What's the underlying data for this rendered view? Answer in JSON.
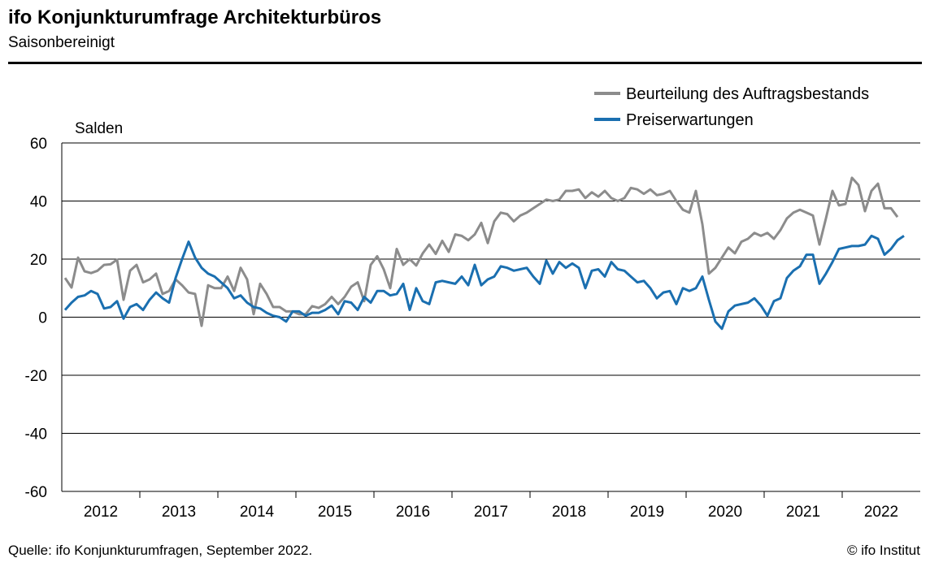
{
  "header": {
    "title": "ifo Konjunkturumfrage Architekturbüros",
    "subtitle": "Saisonbereinigt"
  },
  "footer": {
    "source": "Quelle: ifo Konjunkturumfragen, September 2022.",
    "copyright": "© ifo Institut"
  },
  "chart_data": {
    "type": "line",
    "ylabel": "Salden",
    "ylim": [
      -60,
      60
    ],
    "yticks": [
      60,
      40,
      20,
      0,
      -20,
      -40,
      -60
    ],
    "xlim": [
      "2012-01",
      "2022-12"
    ],
    "year_labels": [
      "2012",
      "2013",
      "2014",
      "2015",
      "2016",
      "2017",
      "2018",
      "2019",
      "2020",
      "2021",
      "2022"
    ],
    "grid": "horizontal",
    "legend_position": "top-right",
    "series": [
      {
        "name": "Beurteilung des Auftragsbestands",
        "color": "#8c8c8c",
        "start": "2012-01",
        "values": [
          13.5,
          10.2,
          20.5,
          15.8,
          15.2,
          16.0,
          18.0,
          18.2,
          19.8,
          6.0,
          16.0,
          18.0,
          12.0,
          13.0,
          15.0,
          8.0,
          9.0,
          13.0,
          11.0,
          8.5,
          8.0,
          -3.0,
          11.0,
          10.0,
          10.0,
          14.0,
          9.0,
          17.0,
          13.0,
          1.0,
          11.5,
          8.0,
          3.5,
          3.5,
          2.0,
          2.0,
          1.0,
          1.0,
          3.8,
          3.2,
          4.5,
          7.0,
          4.5,
          7.0,
          10.5,
          12.0,
          5.5,
          18.0,
          21.0,
          16.5,
          10.0,
          23.5,
          18.0,
          20.0,
          17.8,
          22.0,
          25.0,
          21.8,
          26.3,
          22.5,
          28.5,
          28.0,
          26.5,
          28.5,
          32.5,
          25.5,
          33.0,
          36.0,
          35.5,
          33.0,
          35.0,
          36.0,
          37.5,
          39.0,
          40.5,
          40.0,
          40.5,
          43.5,
          43.5,
          44.0,
          41.0,
          43.0,
          41.5,
          43.5,
          41.0,
          40.0,
          41.0,
          44.5,
          44.0,
          42.5,
          44.0,
          42.0,
          42.5,
          43.5,
          40.0,
          37.0,
          36.0,
          43.5,
          32.0,
          15.0,
          17.0,
          20.5,
          24.0,
          22.0,
          26.0,
          27.0,
          29.0,
          28.0,
          29.0,
          27.0,
          30.0,
          34.0,
          36.0,
          37.0,
          36.0,
          35.0,
          25.0,
          34.0,
          43.5,
          38.5,
          39.0,
          48.0,
          45.5,
          36.5,
          43.5,
          46.0,
          37.5,
          37.5,
          34.5
        ]
      },
      {
        "name": "Preiserwartungen",
        "color": "#1a6fb0",
        "start": "2012-01",
        "values": [
          2.5,
          5.0,
          7.0,
          7.5,
          9.0,
          8.0,
          3.0,
          3.5,
          5.5,
          -0.5,
          3.5,
          4.5,
          2.5,
          6.0,
          8.5,
          6.5,
          5.0,
          13.5,
          20.0,
          26.0,
          20.5,
          17.0,
          15.0,
          14.0,
          12.0,
          10.0,
          6.5,
          7.5,
          5.0,
          3.5,
          3.0,
          1.5,
          0.5,
          0.0,
          -1.5,
          2.0,
          2.0,
          0.5,
          1.5,
          1.5,
          2.5,
          4.0,
          1.0,
          5.5,
          5.0,
          2.5,
          7.0,
          5.0,
          9.0,
          9.0,
          7.5,
          8.0,
          11.5,
          2.5,
          10.0,
          5.5,
          4.5,
          12.0,
          12.5,
          12.0,
          11.5,
          14.0,
          11.0,
          18.0,
          11.0,
          13.0,
          14.0,
          17.5,
          17.0,
          16.0,
          16.5,
          17.0,
          14.0,
          11.5,
          19.5,
          15.0,
          19.0,
          17.0,
          18.5,
          17.0,
          10.0,
          16.0,
          16.5,
          14.0,
          19.0,
          16.5,
          16.0,
          14.0,
          12.0,
          12.5,
          10.0,
          6.5,
          8.5,
          9.0,
          4.5,
          10.0,
          9.0,
          10.0,
          14.0,
          6.0,
          -1.5,
          -4.0,
          2.0,
          4.0,
          4.5,
          5.0,
          6.5,
          4.0,
          0.5,
          5.5,
          6.5,
          13.5,
          16.0,
          17.5,
          21.5,
          21.5,
          11.5,
          15.0,
          19.0,
          23.5,
          24.0,
          24.5,
          24.5,
          25.0,
          28.0,
          27.0,
          21.5,
          23.5,
          26.5,
          28.0
        ]
      }
    ]
  }
}
